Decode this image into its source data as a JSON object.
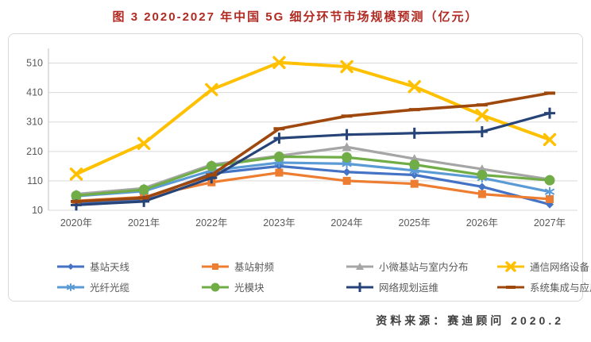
{
  "title": "图 3 2020-2027 年中国 5G 细分环节市场规模预测（亿元）",
  "source_note": "资料来源：赛迪顾问 2020.2",
  "colors": {
    "title_text": "#B02A22",
    "footer_text": "#404040",
    "grid_line": "#D9D9D9",
    "axis_line": "#BFBFBF",
    "axis_text": "#595959",
    "box_border": "#D9D9D9"
  },
  "chart_data": {
    "type": "line",
    "title": "图 3 2020-2027 年中国 5G 细分环节市场规模预测（亿元）",
    "xlabel": "",
    "ylabel": "",
    "categories": [
      "2020年",
      "2021年",
      "2022年",
      "2023年",
      "2024年",
      "2025年",
      "2026年",
      "2027年"
    ],
    "ylim": [
      10,
      560
    ],
    "yticks": [
      10,
      110,
      210,
      310,
      410,
      510
    ],
    "grid": true,
    "legend_position": "bottom",
    "series": [
      {
        "name": "基站天线",
        "color": "#4472C4",
        "marker": "diamond",
        "values": [
          35,
          48,
          135,
          160,
          140,
          130,
          90,
          30
        ]
      },
      {
        "name": "基站射频",
        "color": "#ED7D31",
        "marker": "square",
        "values": [
          42,
          55,
          105,
          138,
          110,
          100,
          65,
          48
        ]
      },
      {
        "name": "小微基站与室内分布",
        "color": "#A5A5A5",
        "marker": "triangle",
        "values": [
          65,
          85,
          165,
          195,
          225,
          185,
          150,
          115
        ]
      },
      {
        "name": "通信网络设备",
        "color": "#FFC000",
        "marker": "x",
        "values": [
          133,
          237,
          420,
          512,
          498,
          430,
          333,
          250
        ]
      },
      {
        "name": "光纤光缆",
        "color": "#5B9BD5",
        "marker": "asterisk",
        "values": [
          58,
          75,
          145,
          172,
          168,
          145,
          120,
          73
        ]
      },
      {
        "name": "光模块",
        "color": "#70AD47",
        "marker": "circle",
        "values": [
          60,
          80,
          160,
          192,
          190,
          165,
          130,
          112
        ]
      },
      {
        "name": "网络规划运维",
        "color": "#264478",
        "marker": "plus",
        "values": [
          28,
          40,
          120,
          255,
          267,
          272,
          277,
          340
        ]
      },
      {
        "name": "系统集成与应用服务",
        "color": "#9E480E",
        "marker": "dash",
        "values": [
          40,
          52,
          130,
          287,
          330,
          352,
          368,
          408
        ]
      }
    ]
  }
}
